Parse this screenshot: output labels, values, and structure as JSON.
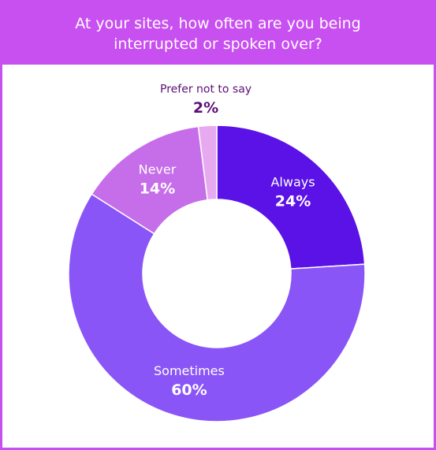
{
  "chart_data": {
    "type": "donut",
    "title": "At your sites, how often are you being interrupted or spoken over?",
    "categories": [
      "Always",
      "Sometimes",
      "Never",
      "Prefer not to say"
    ],
    "values": [
      24,
      60,
      14,
      2
    ],
    "value_labels": [
      "24%",
      "60%",
      "14%",
      "2%"
    ],
    "colors": [
      "#5a12e6",
      "#8a55f6",
      "#c66de9",
      "#e7aaf1"
    ]
  }
}
